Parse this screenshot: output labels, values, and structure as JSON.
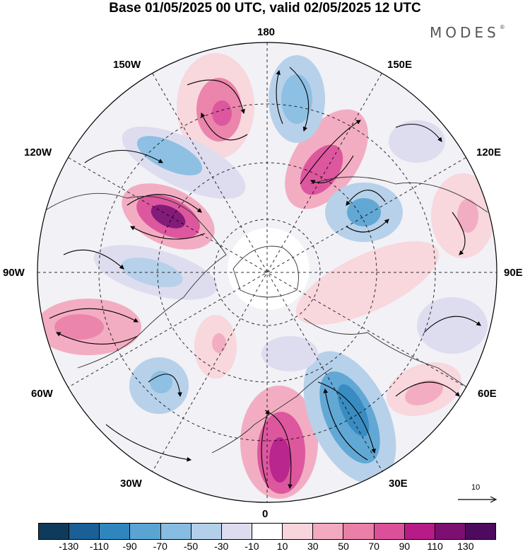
{
  "title": "Base 01/05/2025 00 UTC, valid 02/05/2025 12 UTC",
  "brand": "MODES",
  "brand_mark": "®",
  "longitude_labels": {
    "top": "180",
    "bottom": "0",
    "left": "90W",
    "right": "90E",
    "nw150": "150W",
    "ne150": "150E",
    "w120": "120W",
    "e120": "120E",
    "w60": "60W",
    "e60": "60E",
    "w30": "30W",
    "e30": "30E"
  },
  "vector_reference": {
    "label": "10",
    "icon": "arrow-right-icon"
  },
  "colorbar": {
    "colors": [
      "#0e3b5c",
      "#1a5f95",
      "#2f86bf",
      "#5aa4d3",
      "#87bde2",
      "#b4cfe9",
      "#dddcef",
      "#ffffff",
      "#f8d5dc",
      "#f3a9bf",
      "#ea7fa7",
      "#dc4f99",
      "#b61b88",
      "#7d0f72",
      "#4d0a5f"
    ],
    "ticks": [
      "-130",
      "-110",
      "-90",
      "-70",
      "-50",
      "-30",
      "-10",
      "10",
      "30",
      "50",
      "70",
      "90",
      "110",
      "130"
    ]
  }
}
